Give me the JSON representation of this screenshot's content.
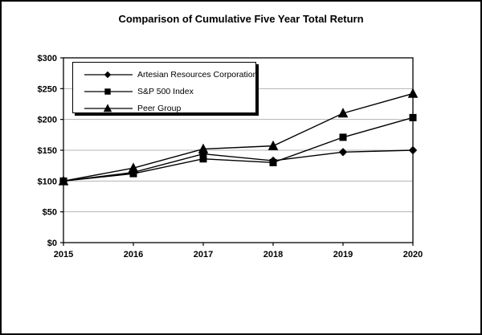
{
  "window": {
    "background": "#ffffff",
    "border_color": "#000000",
    "text_color": "#000000"
  },
  "chart_data": {
    "type": "line",
    "title": "Comparison of Cumulative Five Year Total Return",
    "categories": [
      "2015",
      "2016",
      "2017",
      "2018",
      "2019",
      "2020"
    ],
    "series": [
      {
        "name": "Artesian Resources Corporation",
        "marker": "diamond",
        "color": "#000000",
        "values": [
          100,
          114,
          144,
          133,
          147,
          150
        ]
      },
      {
        "name": "S&P 500 Index",
        "marker": "square",
        "color": "#000000",
        "values": [
          100,
          112,
          136,
          130,
          171,
          203
        ]
      },
      {
        "name": "Peer Group",
        "marker": "triangle",
        "color": "#000000",
        "values": [
          100,
          121,
          152,
          157,
          210,
          242
        ]
      }
    ],
    "y_ticks": [
      "$0",
      "$50",
      "$100",
      "$150",
      "$200",
      "$250",
      "$300"
    ],
    "y_tick_values": [
      0,
      50,
      100,
      150,
      200,
      250,
      300
    ],
    "ylim": [
      0,
      300
    ],
    "grid": "horizontal",
    "gridline_color": "#b3b3b3",
    "axis_color": "#000000",
    "legend_position": "top-left-inside"
  }
}
